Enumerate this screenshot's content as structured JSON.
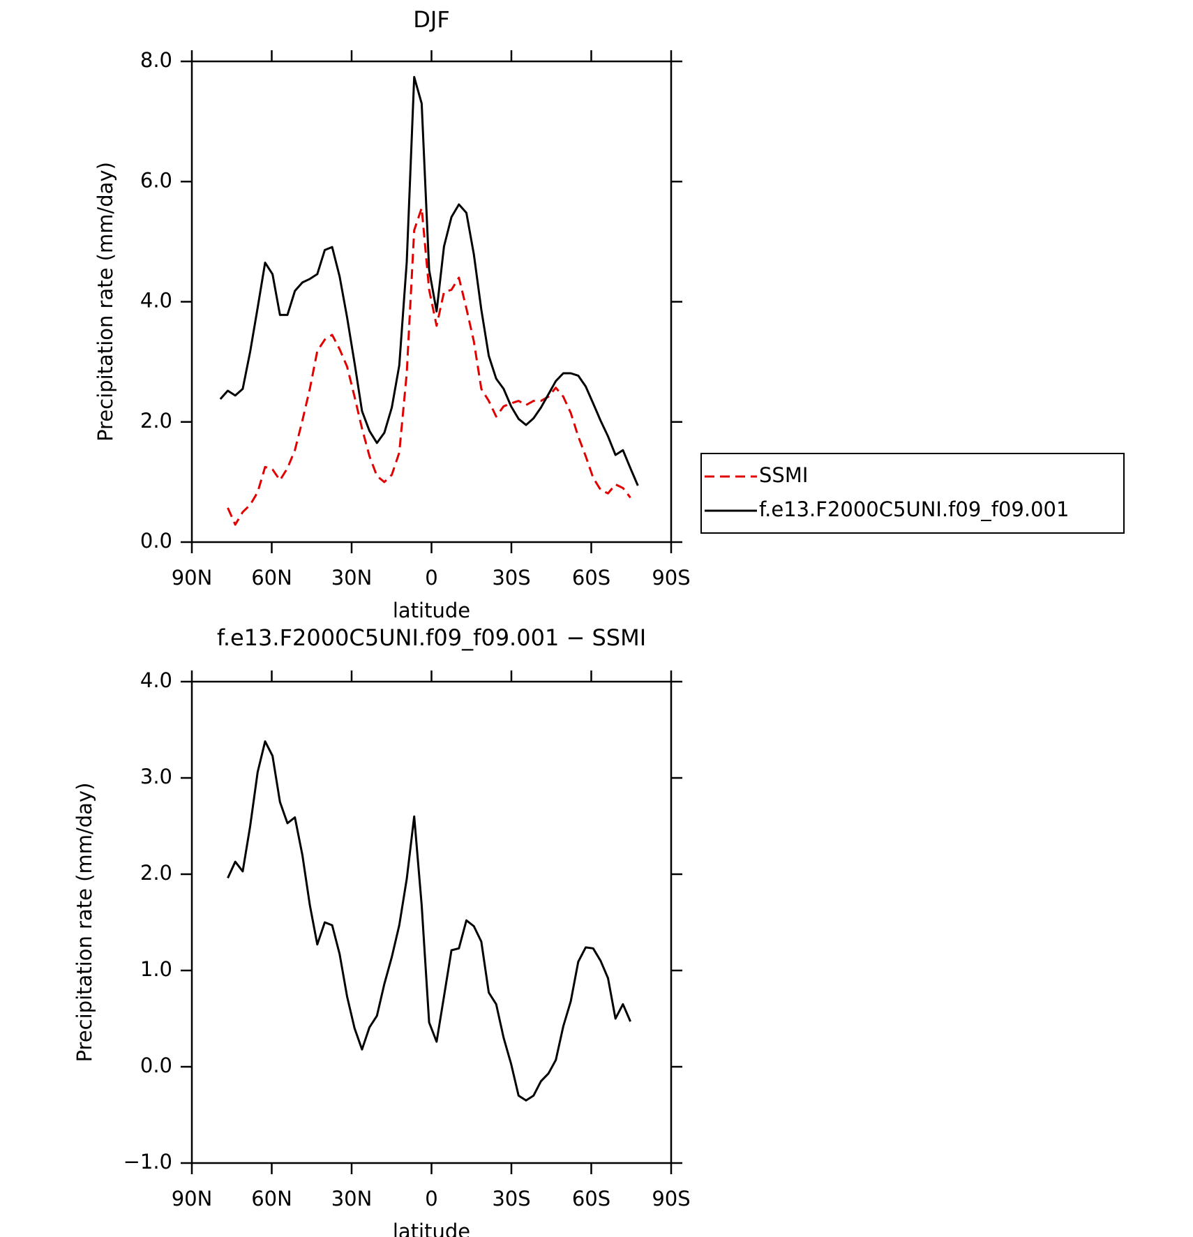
{
  "chart_data": [
    {
      "type": "line",
      "title": "DJF",
      "xlabel": "latitude",
      "ylabel": "Precipitation rate (mm/day)",
      "xlim": [
        90,
        -90
      ],
      "xticks": [
        {
          "value": 90,
          "label": "90N"
        },
        {
          "value": 60,
          "label": "60N"
        },
        {
          "value": 30,
          "label": "30N"
        },
        0,
        {
          "value": -30,
          "label": "30S"
        },
        {
          "value": -60,
          "label": "60S"
        },
        {
          "value": -90,
          "label": "90S"
        }
      ],
      "ylim": [
        0,
        8
      ],
      "yticks": [
        {
          "value": 0,
          "label": "0.0"
        },
        {
          "value": 2,
          "label": "2.0"
        },
        {
          "value": 4,
          "label": "4.0"
        },
        {
          "value": 6,
          "label": "6.0"
        },
        {
          "value": 8,
          "label": "8.0"
        }
      ],
      "legend": "right",
      "series": [
        {
          "name": "SSMI",
          "color": "#e00000",
          "dash": true,
          "x": [
            76.5,
            73.7,
            70.9,
            68.1,
            65.3,
            62.5,
            59.7,
            56.9,
            54.1,
            51.3,
            48.5,
            45.7,
            42.9,
            40.1,
            37.3,
            34.5,
            31.7,
            28.9,
            26.1,
            23.3,
            20.5,
            17.7,
            14.9,
            12.1,
            9.3,
            6.5,
            3.7,
            0.9,
            -1.9,
            -4.7,
            -7.5,
            -10.3,
            -13.1,
            -15.9,
            -18.7,
            -21.5,
            -24.3,
            -27.1,
            -29.9,
            -32.7,
            -35.5,
            -38.3,
            -41.1,
            -43.9,
            -46.7,
            -49.5,
            -52.3,
            -55.1,
            -57.9,
            -60.7,
            -63.5,
            -66.3,
            -69.1,
            -71.9,
            -74.7
          ],
          "values": [
            0.57,
            0.29,
            0.5,
            0.62,
            0.83,
            1.25,
            1.21,
            1.03,
            1.23,
            1.53,
            2.02,
            2.55,
            3.18,
            3.37,
            3.45,
            3.21,
            2.92,
            2.42,
            1.89,
            1.43,
            1.1,
            1.0,
            1.12,
            1.49,
            2.81,
            5.19,
            5.56,
            4.2,
            3.6,
            4.16,
            4.2,
            4.4,
            3.89,
            3.34,
            2.55,
            2.35,
            2.09,
            2.26,
            2.31,
            2.35,
            2.28,
            2.35,
            2.35,
            2.42,
            2.57,
            2.42,
            2.15,
            1.76,
            1.43,
            1.07,
            0.87,
            0.81,
            0.96,
            0.9,
            0.74
          ]
        },
        {
          "name": "f.e13.F2000C5UNI.f09_f09.001",
          "color": "#000000",
          "dash": false,
          "x": [
            79.3,
            76.5,
            73.7,
            70.9,
            68.1,
            65.3,
            62.5,
            59.7,
            56.9,
            54.1,
            51.3,
            48.5,
            45.7,
            42.9,
            40.1,
            37.3,
            34.5,
            31.7,
            28.9,
            26.1,
            23.3,
            20.5,
            17.7,
            14.9,
            12.1,
            9.3,
            6.5,
            3.7,
            0.9,
            -1.9,
            -4.7,
            -7.5,
            -10.3,
            -13.1,
            -15.9,
            -18.7,
            -21.5,
            -24.3,
            -27.1,
            -29.9,
            -32.7,
            -35.5,
            -38.3,
            -41.1,
            -43.9,
            -46.7,
            -49.5,
            -52.3,
            -55.1,
            -57.9,
            -60.7,
            -63.5,
            -66.3,
            -69.1,
            -71.9,
            -74.7,
            -77.5
          ],
          "values": [
            2.38,
            2.52,
            2.44,
            2.55,
            3.17,
            3.9,
            4.65,
            4.46,
            3.78,
            3.78,
            4.18,
            4.32,
            4.38,
            4.46,
            4.86,
            4.91,
            4.42,
            3.74,
            2.98,
            2.18,
            1.85,
            1.65,
            1.82,
            2.24,
            2.94,
            4.66,
            7.74,
            7.3,
            4.53,
            3.84,
            4.92,
            5.41,
            5.62,
            5.48,
            4.79,
            3.87,
            3.1,
            2.72,
            2.55,
            2.26,
            2.05,
            1.95,
            2.06,
            2.24,
            2.46,
            2.68,
            2.81,
            2.81,
            2.77,
            2.59,
            2.31,
            2.02,
            1.76,
            1.45,
            1.53,
            1.23,
            0.94
          ]
        }
      ]
    },
    {
      "type": "line",
      "title": "f.e13.F2000C5UNI.f09_f09.001 − SSMI",
      "xlabel": "latitude",
      "ylabel": "Precipitation rate (mm/day)",
      "xlim": [
        90,
        -90
      ],
      "xticks": [
        {
          "value": 90,
          "label": "90N"
        },
        {
          "value": 60,
          "label": "60N"
        },
        {
          "value": 30,
          "label": "30N"
        },
        0,
        {
          "value": -30,
          "label": "30S"
        },
        {
          "value": -60,
          "label": "60S"
        },
        {
          "value": -90,
          "label": "90S"
        }
      ],
      "ylim": [
        -1,
        4
      ],
      "yticks": [
        {
          "value": -1,
          "label": "−1.0"
        },
        {
          "value": 0,
          "label": "0.0"
        },
        {
          "value": 1,
          "label": "1.0"
        },
        {
          "value": 2,
          "label": "2.0"
        },
        {
          "value": 3,
          "label": "3.0"
        },
        {
          "value": 4,
          "label": "4.0"
        }
      ],
      "series": [
        {
          "color": "#000000",
          "dash": false,
          "x": [
            76.5,
            73.7,
            70.9,
            68.1,
            65.3,
            62.5,
            59.7,
            56.9,
            54.1,
            51.3,
            48.5,
            45.7,
            42.9,
            40.1,
            37.3,
            34.5,
            31.7,
            28.9,
            26.1,
            23.3,
            20.5,
            17.7,
            14.9,
            12.1,
            9.3,
            6.5,
            3.7,
            0.9,
            -1.9,
            -4.7,
            -7.5,
            -10.3,
            -13.1,
            -15.9,
            -18.7,
            -21.5,
            -24.3,
            -27.1,
            -29.9,
            -32.7,
            -35.5,
            -38.3,
            -41.1,
            -43.9,
            -46.7,
            -49.5,
            -52.3,
            -55.1,
            -57.9,
            -60.7,
            -63.5,
            -66.3,
            -69.1,
            -71.9,
            -74.7
          ],
          "values": [
            1.96,
            2.13,
            2.03,
            2.5,
            3.06,
            3.38,
            3.23,
            2.75,
            2.53,
            2.59,
            2.2,
            1.68,
            1.27,
            1.5,
            1.47,
            1.17,
            0.73,
            0.4,
            0.18,
            0.41,
            0.53,
            0.86,
            1.14,
            1.47,
            1.95,
            2.6,
            1.68,
            0.46,
            0.26,
            0.73,
            1.21,
            1.23,
            1.52,
            1.46,
            1.3,
            0.77,
            0.65,
            0.3,
            0.03,
            -0.3,
            -0.35,
            -0.3,
            -0.15,
            -0.07,
            0.07,
            0.42,
            0.68,
            1.09,
            1.24,
            1.23,
            1.1,
            0.92,
            0.5,
            0.65,
            0.47
          ]
        }
      ]
    }
  ]
}
